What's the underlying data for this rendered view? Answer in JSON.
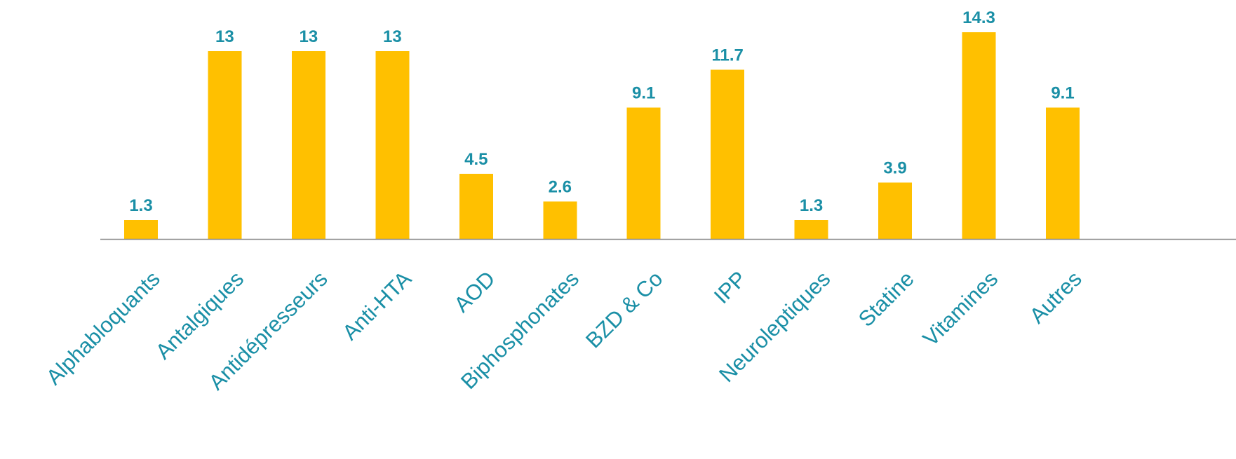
{
  "chart_data": {
    "type": "bar",
    "categories": [
      "Alphabloquants",
      "Antalgiques",
      "Antidépresseurs",
      "Anti-HTA",
      "AOD",
      "Biphosphonates",
      "BZD & Co",
      "IPP",
      "Neuroleptiques",
      "Statine",
      "Vitamines",
      "Autres"
    ],
    "values": [
      1.3,
      13,
      13,
      13,
      4.5,
      2.6,
      9.1,
      11.7,
      1.3,
      3.9,
      14.3,
      9.1
    ],
    "data_labels": [
      "1.3",
      "13",
      "13",
      "13",
      "4.5",
      "2.6",
      "9.1",
      "11.7",
      "1.3",
      "3.9",
      "14.3",
      "9.1"
    ],
    "ylim": [
      0,
      14.3
    ],
    "grid": false,
    "legend": "none",
    "colors": {
      "bar": "#FFC000",
      "label": "#1A8FA6",
      "axis": "#8C8C8C"
    }
  }
}
